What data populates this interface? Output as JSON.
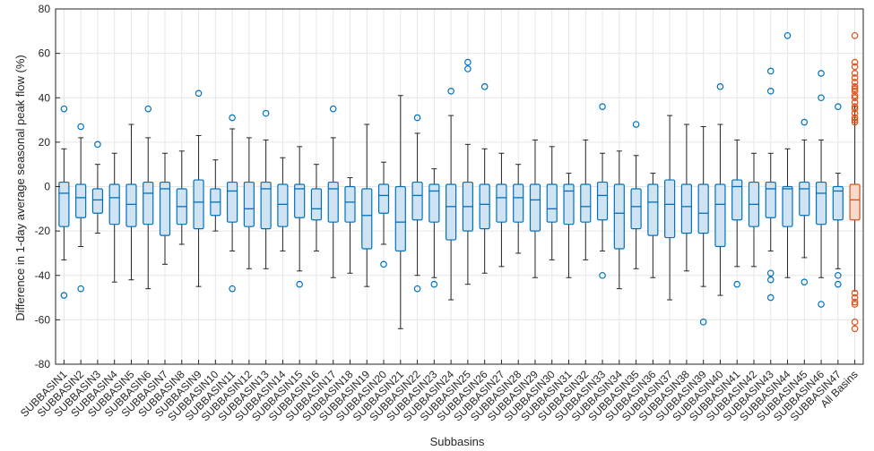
{
  "chart_data": {
    "type": "boxplot",
    "xlabel": "Subbasins",
    "ylabel": "Difference in 1-day average seasonal peak flow (%)",
    "ylim": [
      -80,
      80
    ],
    "yticks": [
      -80,
      -60,
      -40,
      -20,
      0,
      20,
      40,
      60,
      80
    ],
    "grid": true,
    "colors": {
      "subbasin": "#0072BD",
      "subbasin_fill": "#cfe3f3",
      "all": "#D95319",
      "all_fill": "#f8d9cb",
      "whisker": "#262626",
      "grid": "#e6e6e6"
    },
    "categories": [
      "SUBBASIN1",
      "SUBBASIN2",
      "SUBBASIN3",
      "SUBBASIN4",
      "SUBBASIN5",
      "SUBBASIN6",
      "SUBBASIN7",
      "SUBBASIN8",
      "SUBBASIN9",
      "SUBBASIN10",
      "SUBBASIN11",
      "SUBBASIN12",
      "SUBBASIN13",
      "SUBBASIN14",
      "SUBBASIN15",
      "SUBBASIN16",
      "SUBBASIN17",
      "SUBBASIN18",
      "SUBBASIN19",
      "SUBBASIN20",
      "SUBBASIN21",
      "SUBBASIN22",
      "SUBBASIN23",
      "SUBBASIN24",
      "SUBBASIN25",
      "SUBBASIN26",
      "SUBBASIN27",
      "SUBBASIN28",
      "SUBBASIN29",
      "SUBBASIN30",
      "SUBBASIN31",
      "SUBBASIN32",
      "SUBBASIN33",
      "SUBBASIN34",
      "SUBBASIN35",
      "SUBBASIN36",
      "SUBBASIN37",
      "SUBBASIN38",
      "SUBBASIN39",
      "SUBBASIN40",
      "SUBBASIN41",
      "SUBBASIN42",
      "SUBBASIN43",
      "SUBBASIN44",
      "SUBBASIN45",
      "SUBBASIN46",
      "SUBBASIN47",
      "All Basins"
    ],
    "boxes": [
      {
        "min": -33,
        "q1": -18,
        "median": -3,
        "q3": 2,
        "max": 17,
        "outliers": [
          35,
          -49
        ]
      },
      {
        "min": -27,
        "q1": -14,
        "median": -5,
        "q3": 1,
        "max": 22,
        "outliers": [
          27,
          -46
        ]
      },
      {
        "min": -21,
        "q1": -12,
        "median": -6,
        "q3": -1,
        "max": 10,
        "outliers": [
          19
        ]
      },
      {
        "min": -43,
        "q1": -17,
        "median": -5,
        "q3": 1,
        "max": 15,
        "outliers": []
      },
      {
        "min": -42,
        "q1": -18,
        "median": -8,
        "q3": 1,
        "max": 28,
        "outliers": []
      },
      {
        "min": -46,
        "q1": -17,
        "median": -3,
        "q3": 2,
        "max": 22,
        "outliers": [
          35
        ]
      },
      {
        "min": -35,
        "q1": -22,
        "median": -1,
        "q3": 2,
        "max": 15,
        "outliers": []
      },
      {
        "min": -26,
        "q1": -17,
        "median": -9,
        "q3": -1,
        "max": 16,
        "outliers": []
      },
      {
        "min": -45,
        "q1": -19,
        "median": -7,
        "q3": 3,
        "max": 23,
        "outliers": [
          42
        ]
      },
      {
        "min": -20,
        "q1": -13,
        "median": -7,
        "q3": -1,
        "max": 12,
        "outliers": []
      },
      {
        "min": -29,
        "q1": -16,
        "median": -2,
        "q3": 2,
        "max": 26,
        "outliers": [
          31,
          -46
        ]
      },
      {
        "min": -37,
        "q1": -18,
        "median": -10,
        "q3": 2,
        "max": 22,
        "outliers": []
      },
      {
        "min": -37,
        "q1": -19,
        "median": -1,
        "q3": 2,
        "max": 21,
        "outliers": [
          33
        ]
      },
      {
        "min": -29,
        "q1": -18,
        "median": -8,
        "q3": 1,
        "max": 13,
        "outliers": []
      },
      {
        "min": -38,
        "q1": -14,
        "median": -1,
        "q3": 1,
        "max": 18,
        "outliers": [
          -44
        ]
      },
      {
        "min": -29,
        "q1": -15,
        "median": -10,
        "q3": -1,
        "max": 10,
        "outliers": []
      },
      {
        "min": -41,
        "q1": -16,
        "median": -1,
        "q3": 2,
        "max": 22,
        "outliers": [
          35
        ]
      },
      {
        "min": -39,
        "q1": -16,
        "median": -7,
        "q3": 0,
        "max": 4,
        "outliers": []
      },
      {
        "min": -45,
        "q1": -28,
        "median": -13,
        "q3": -1,
        "max": 28,
        "outliers": []
      },
      {
        "min": -26,
        "q1": -12,
        "median": -4,
        "q3": 1,
        "max": 11,
        "outliers": [
          -35
        ]
      },
      {
        "min": -64,
        "q1": -29,
        "median": -16,
        "q3": 0,
        "max": 41,
        "outliers": []
      },
      {
        "min": -40,
        "q1": -15,
        "median": -4,
        "q3": 2,
        "max": 24,
        "outliers": [
          31,
          -46
        ]
      },
      {
        "min": -41,
        "q1": -16,
        "median": -2,
        "q3": 1,
        "max": 8,
        "outliers": [
          -44
        ]
      },
      {
        "min": -51,
        "q1": -24,
        "median": -9,
        "q3": 1,
        "max": 32,
        "outliers": [
          43
        ]
      },
      {
        "min": -44,
        "q1": -20,
        "median": -9,
        "q3": 2,
        "max": 19,
        "outliers": [
          56,
          53
        ]
      },
      {
        "min": -39,
        "q1": -19,
        "median": -8,
        "q3": 1,
        "max": 17,
        "outliers": [
          45
        ]
      },
      {
        "min": -36,
        "q1": -16,
        "median": -5,
        "q3": 1,
        "max": 15,
        "outliers": []
      },
      {
        "min": -30,
        "q1": -16,
        "median": -5,
        "q3": 1,
        "max": 10,
        "outliers": []
      },
      {
        "min": -41,
        "q1": -20,
        "median": -6,
        "q3": 1,
        "max": 21,
        "outliers": []
      },
      {
        "min": -33,
        "q1": -16,
        "median": -10,
        "q3": 1,
        "max": 18,
        "outliers": []
      },
      {
        "min": -41,
        "q1": -17,
        "median": -2,
        "q3": 1,
        "max": 6,
        "outliers": []
      },
      {
        "min": -33,
        "q1": -16,
        "median": -9,
        "q3": 1,
        "max": 21,
        "outliers": []
      },
      {
        "min": -29,
        "q1": -15,
        "median": -4,
        "q3": 2,
        "max": 15,
        "outliers": [
          36,
          -40
        ]
      },
      {
        "min": -46,
        "q1": -28,
        "median": -12,
        "q3": 1,
        "max": 16,
        "outliers": []
      },
      {
        "min": -37,
        "q1": -19,
        "median": -9,
        "q3": -1,
        "max": 14,
        "outliers": [
          28
        ]
      },
      {
        "min": -41,
        "q1": -22,
        "median": -7,
        "q3": 1,
        "max": 6,
        "outliers": []
      },
      {
        "min": -51,
        "q1": -23,
        "median": -8,
        "q3": 3,
        "max": 32,
        "outliers": []
      },
      {
        "min": -38,
        "q1": -21,
        "median": -9,
        "q3": 1,
        "max": 28,
        "outliers": []
      },
      {
        "min": -45,
        "q1": -21,
        "median": -12,
        "q3": 1,
        "max": 27,
        "outliers": [
          -61
        ]
      },
      {
        "min": -49,
        "q1": -27,
        "median": -8,
        "q3": 1,
        "max": 28,
        "outliers": [
          45
        ]
      },
      {
        "min": -36,
        "q1": -15,
        "median": 0,
        "q3": 3,
        "max": 21,
        "outliers": [
          -44
        ]
      },
      {
        "min": -36,
        "q1": -18,
        "median": -8,
        "q3": 2,
        "max": 15,
        "outliers": []
      },
      {
        "min": -29,
        "q1": -14,
        "median": -1,
        "q3": 2,
        "max": 15,
        "outliers": [
          52,
          43,
          -39,
          -42,
          -50
        ]
      },
      {
        "min": -41,
        "q1": -18,
        "median": -1,
        "q3": 0,
        "max": 17,
        "outliers": [
          68
        ]
      },
      {
        "min": -32,
        "q1": -13,
        "median": -1,
        "q3": 2,
        "max": 21,
        "outliers": [
          29,
          -43
        ]
      },
      {
        "min": -41,
        "q1": -17,
        "median": -3,
        "q3": 2,
        "max": 21,
        "outliers": [
          51,
          40,
          -53
        ]
      },
      {
        "min": -37,
        "q1": -15,
        "median": -2,
        "q3": 0,
        "max": 6,
        "outliers": [
          36,
          -40,
          -44
        ]
      },
      {
        "min": -47,
        "q1": -15,
        "median": -6,
        "q3": 1,
        "max": 36,
        "outliers": [
          68,
          56,
          54,
          51,
          49,
          47,
          45,
          44,
          43,
          41,
          40,
          38,
          36,
          35,
          33,
          31,
          30,
          29,
          -48,
          -50,
          -52,
          -53,
          -61,
          -64
        ]
      }
    ]
  }
}
